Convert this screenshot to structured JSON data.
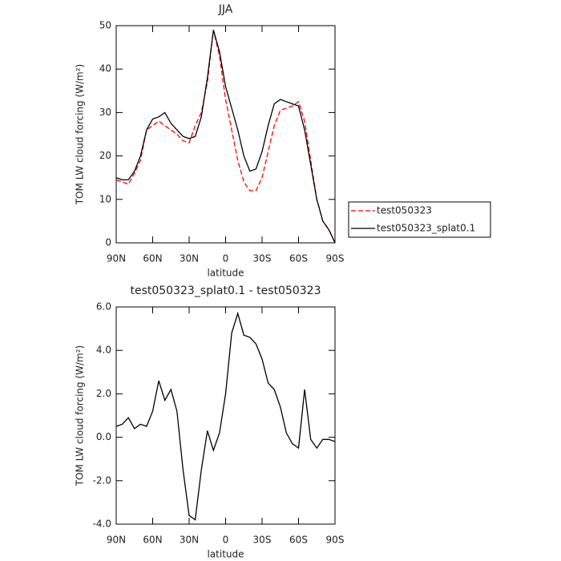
{
  "chart_data": [
    {
      "type": "line",
      "title": "JJA",
      "xlabel": "latitude",
      "ylabel": "TOM LW cloud forcing (W/m²)",
      "x": [
        90,
        85,
        80,
        75,
        70,
        65,
        60,
        55,
        50,
        45,
        40,
        35,
        30,
        25,
        20,
        15,
        10,
        5,
        0,
        -5,
        -10,
        -15,
        -20,
        -25,
        -30,
        -35,
        -40,
        -45,
        -50,
        -55,
        -60,
        -65,
        -70,
        -75,
        -80,
        -85,
        -90
      ],
      "xlim": [
        90,
        -90
      ],
      "xticks": [
        {
          "value": 90,
          "label": "90N"
        },
        {
          "value": 60,
          "label": "60N"
        },
        {
          "value": 30,
          "label": "30N"
        },
        0,
        {
          "value": -30,
          "label": "30S"
        },
        {
          "value": -60,
          "label": "60S"
        },
        {
          "value": -90,
          "label": "90S"
        }
      ],
      "ylim": [
        0,
        50
      ],
      "yticks": [
        0,
        10,
        20,
        30,
        40,
        50
      ],
      "legend": "right",
      "series": [
        {
          "name": "test050323",
          "color": "#ff0000",
          "style": "dashed",
          "values": [
            14.5,
            14,
            13.5,
            16,
            19,
            26,
            27,
            28,
            27,
            26,
            25,
            23.5,
            23,
            27,
            30,
            37,
            49,
            43,
            33,
            26,
            19,
            14,
            12,
            12,
            15,
            21,
            27,
            30.5,
            31,
            31.5,
            32.5,
            28,
            19,
            10,
            5,
            3,
            0
          ]
        },
        {
          "name": "test050323_splat0.1",
          "color": "#000000",
          "style": "solid",
          "values": [
            15,
            14.5,
            14.5,
            16.5,
            20,
            26,
            28.5,
            29,
            30,
            27.5,
            26,
            24.5,
            24,
            24.5,
            29,
            38,
            49,
            44,
            36,
            31,
            26,
            20,
            16.5,
            17,
            21,
            27,
            32,
            33,
            32.5,
            32,
            31.5,
            26,
            18,
            10,
            5,
            3,
            0
          ]
        }
      ]
    },
    {
      "type": "line",
      "title": "test050323_splat0.1 - test050323",
      "xlabel": "latitude",
      "ylabel": "TOM LW cloud forcing (W/m²)",
      "x": [
        90,
        85,
        80,
        75,
        70,
        65,
        60,
        55,
        50,
        45,
        40,
        35,
        30,
        25,
        20,
        15,
        10,
        5,
        0,
        -5,
        -10,
        -15,
        -20,
        -25,
        -30,
        -35,
        -40,
        -45,
        -50,
        -55,
        -60,
        -65,
        -70,
        -75,
        -80,
        -85,
        -90
      ],
      "xlim": [
        90,
        -90
      ],
      "xticks": [
        {
          "value": 90,
          "label": "90N"
        },
        {
          "value": 60,
          "label": "60N"
        },
        {
          "value": 30,
          "label": "30N"
        },
        0,
        {
          "value": -30,
          "label": "30S"
        },
        {
          "value": -60,
          "label": "60S"
        },
        {
          "value": -90,
          "label": "90S"
        }
      ],
      "ylim": [
        -4,
        6
      ],
      "yticks": [
        {
          "value": -4,
          "label": "-4.0"
        },
        {
          "value": -2,
          "label": "-2.0"
        },
        {
          "value": 0,
          "label": "0.0"
        },
        {
          "value": 2,
          "label": "2.0"
        },
        {
          "value": 4,
          "label": "4.0"
        },
        {
          "value": 6,
          "label": "6.0"
        }
      ],
      "series": [
        {
          "color": "#000000",
          "style": "solid",
          "values": [
            0.5,
            0.6,
            0.9,
            0.4,
            0.6,
            0.5,
            1.2,
            2.6,
            1.7,
            2.2,
            1.2,
            -1.5,
            -3.6,
            -3.8,
            -1.5,
            0.3,
            -0.6,
            0.2,
            2.0,
            4.8,
            5.7,
            4.7,
            4.6,
            4.3,
            3.6,
            2.5,
            2.2,
            1.4,
            0.2,
            -0.3,
            -0.5,
            2.2,
            -0.1,
            -0.5,
            -0.1,
            -0.1,
            -0.2
          ]
        }
      ]
    }
  ]
}
